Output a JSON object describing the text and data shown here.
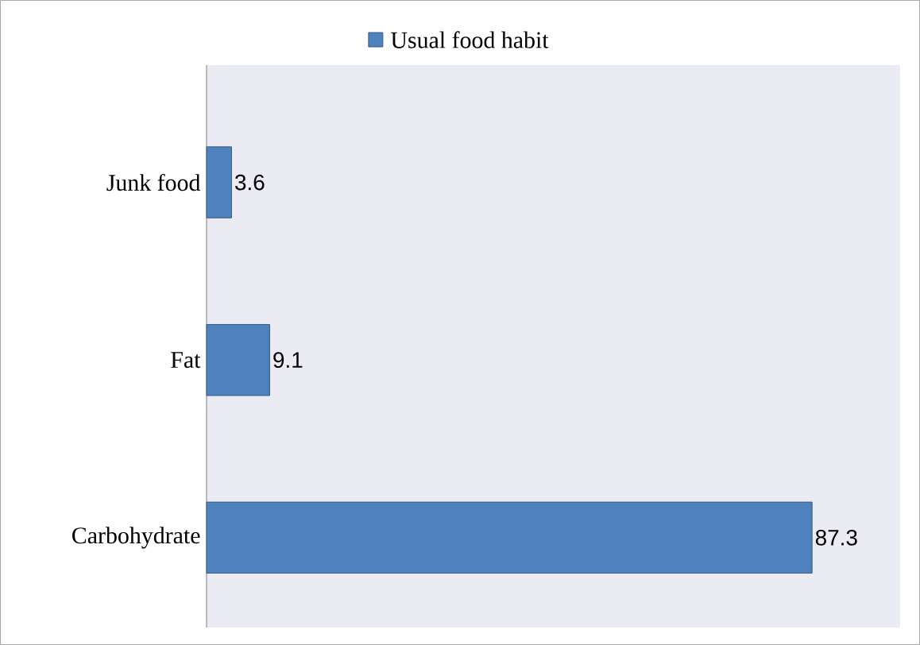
{
  "chart_data": {
    "type": "bar",
    "orientation": "horizontal",
    "categories": [
      "Junk food",
      "Fat",
      "Carbohydrate"
    ],
    "series": [
      {
        "name": "Usual food habit",
        "color": "#4f81bd",
        "values": [
          3.6,
          9.1,
          87.3
        ]
      }
    ],
    "xlim": [
      0,
      100
    ],
    "data_labels": true,
    "legend": "top"
  }
}
